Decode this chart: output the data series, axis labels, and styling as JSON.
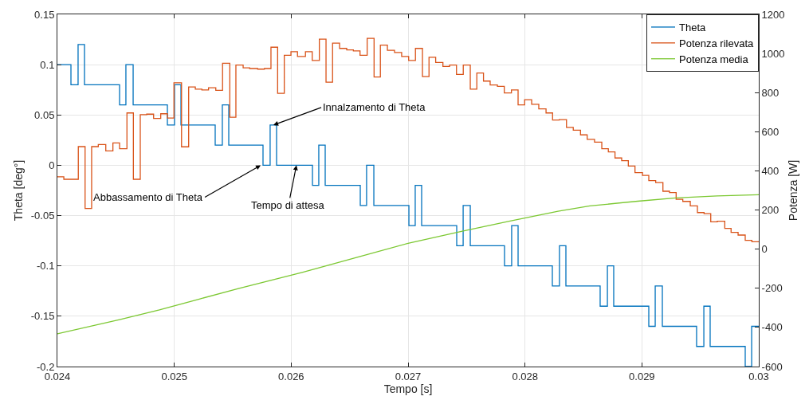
{
  "chart_data": {
    "type": "step",
    "xlabel": "Tempo [s]",
    "ylabel": "Theta [deg°]",
    "y2label": "Potenza [W]",
    "xlim": [
      0.024,
      0.03
    ],
    "xticks": [
      0.024,
      0.025,
      0.026,
      0.027,
      0.028,
      0.029,
      0.03
    ],
    "ylim": [
      -0.2,
      0.15
    ],
    "yticks": [
      -0.2,
      -0.15,
      -0.1,
      -0.05,
      0,
      0.05,
      0.1,
      0.15
    ],
    "y2lim": [
      -600,
      1200
    ],
    "y2ticks": [
      -600,
      -400,
      -200,
      0,
      200,
      400,
      600,
      800,
      1000,
      1200
    ],
    "grid": true,
    "legend": "top right",
    "series": [
      {
        "name": "Theta",
        "color": "#0072bd",
        "x": [
          0.024,
          0.024116,
          0.024177,
          0.024232,
          0.024532,
          0.024586,
          0.024648,
          0.024941,
          0.025002,
          0.025057,
          0.02535,
          0.025411,
          0.025466,
          0.025759,
          0.02582,
          0.025875,
          0.026182,
          0.026236,
          0.026291,
          0.026591,
          0.026645,
          0.026707,
          0.027007,
          0.027061,
          0.027116,
          0.027416,
          0.027471,
          0.027532,
          0.027825,
          0.027886,
          0.027941,
          0.028234,
          0.028295,
          0.02835,
          0.028643,
          0.028705,
          0.028759,
          0.029059,
          0.029114,
          0.029175,
          0.029468,
          0.02953,
          0.029584,
          0.029884,
          0.029939,
          0.03
        ],
        "values": [
          0.1,
          0.08,
          0.12,
          0.08,
          0.06,
          0.1,
          0.06,
          0.04,
          0.08,
          0.04,
          0.02,
          0.06,
          0.02,
          0,
          0.04,
          0,
          -0.02,
          0.02,
          -0.02,
          -0.04,
          0,
          -0.04,
          -0.06,
          -0.02,
          -0.06,
          -0.08,
          -0.04,
          -0.08,
          -0.1,
          -0.06,
          -0.1,
          -0.12,
          -0.08,
          -0.12,
          -0.14,
          -0.1,
          -0.14,
          -0.16,
          -0.12,
          -0.16,
          -0.18,
          -0.14,
          -0.18,
          -0.2,
          -0.16,
          -0.16
        ]
      },
      {
        "name": "Potenza rilevata",
        "color": "#d95319",
        "axis": "y2",
        "x": [
          0.024,
          0.024055,
          0.024179,
          0.024237,
          0.024293,
          0.02435,
          0.024414,
          0.024475,
          0.024532,
          0.024595,
          0.02465,
          0.024709,
          0.024764,
          0.024823,
          0.024884,
          0.024941,
          0.024997,
          0.025062,
          0.025123,
          0.02518,
          0.025236,
          0.025293,
          0.025355,
          0.025413,
          0.025475,
          0.025527,
          0.025589,
          0.025645,
          0.025713,
          0.025771,
          0.025827,
          0.025884,
          0.025941,
          0.025998,
          0.026054,
          0.026122,
          0.02618,
          0.026241,
          0.026298,
          0.026354,
          0.026414,
          0.026475,
          0.026532,
          0.026589,
          0.02665,
          0.026709,
          0.026763,
          0.026823,
          0.026884,
          0.026945,
          0.027005,
          0.027063,
          0.027123,
          0.027179,
          0.027236,
          0.027298,
          0.027355,
          0.027414,
          0.027472,
          0.027532,
          0.027588,
          0.027645,
          0.027702,
          0.027764,
          0.027823,
          0.027884,
          0.027941,
          0.027997,
          0.028057,
          0.028118,
          0.02818,
          0.028236,
          0.028293,
          0.028355,
          0.028413,
          0.028475,
          0.028532,
          0.028595,
          0.028657,
          0.028713,
          0.02877,
          0.028827,
          0.028884,
          0.028941,
          0.029005,
          0.029059,
          0.029118,
          0.02918,
          0.029236,
          0.029293,
          0.02935,
          0.029414,
          0.029475,
          0.029532,
          0.029589,
          0.029645,
          0.029709,
          0.029763,
          0.029823,
          0.029884,
          0.029941,
          0.03
        ],
        "values": [
          370,
          357,
          524,
          208,
          524,
          535,
          502,
          543,
          513,
          696,
          357,
          687,
          690,
          668,
          692,
          670,
          850,
          523,
          829,
          818,
          814,
          825,
          812,
          950,
          674,
          941,
          927,
          923,
          920,
          923,
          1032,
          796,
          991,
          1009,
          985,
          1009,
          964,
          1073,
          853,
          1053,
          1026,
          1018,
          1013,
          991,
          1077,
          880,
          1043,
          1016,
          1005,
          985,
          964,
          1026,
          882,
          981,
          954,
          934,
          941,
          893,
          941,
          818,
          900,
          859,
          839,
          832,
          798,
          814,
          737,
          764,
          740,
          717,
          696,
          660,
          662,
          622,
          608,
          584,
          561,
          547,
          513,
          497,
          466,
          452,
          425,
          391,
          377,
          350,
          340,
          296,
          289,
          255,
          244,
          221,
          187,
          181,
          140,
          143,
          106,
          86,
          72,
          45,
          38,
          38
        ]
      },
      {
        "name": "Potenza media",
        "type": "line",
        "color": "#7cc832",
        "axis": "y2",
        "x": [
          0.024,
          0.024532,
          0.024873,
          0.025214,
          0.025555,
          0.0261,
          0.026577,
          0.027007,
          0.027464,
          0.027873,
          0.028282,
          0.028555,
          0.028964,
          0.029291,
          0.029645,
          0.03
        ],
        "values": [
          -433,
          -360,
          -310,
          -255,
          -200,
          -118,
          -40,
          31,
          92,
          144,
          194,
          221,
          245,
          262,
          272,
          278
        ]
      }
    ],
    "annotations": [
      {
        "text": "Innalzamento di Theta",
        "x": 0.025848,
        "y": 0.04
      },
      {
        "text": "Abbassamento di Theta",
        "x": 0.025739,
        "y": 0
      },
      {
        "text": "Tempo di attesa",
        "x": 0.026045,
        "y": 0
      }
    ]
  }
}
